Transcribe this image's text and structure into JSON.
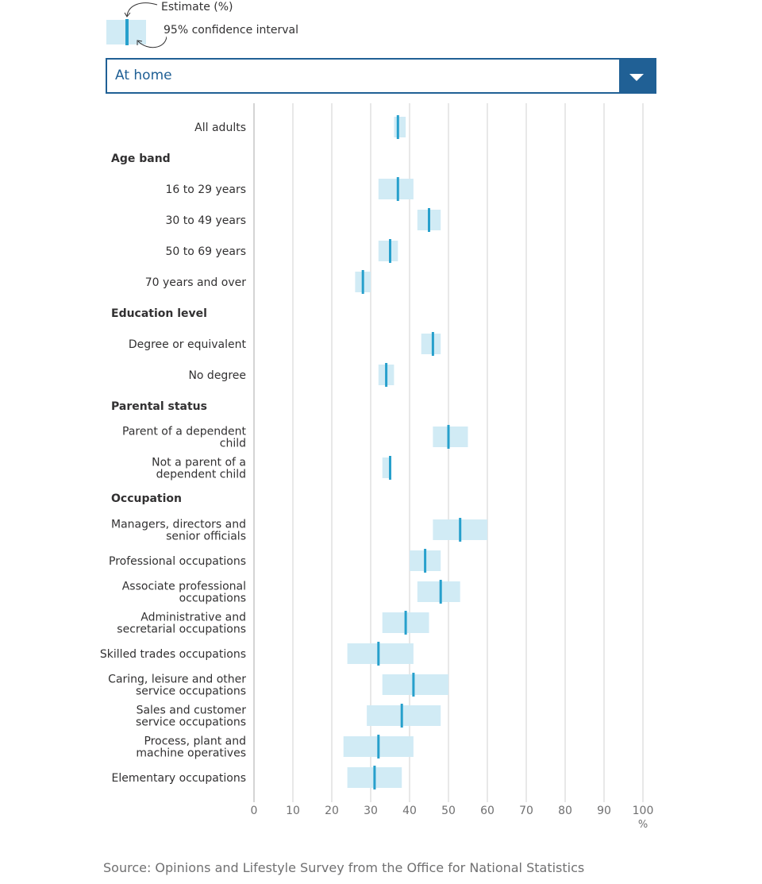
{
  "legend": {
    "estimate_label": "Estimate (%)",
    "ci_label": "95% confidence interval"
  },
  "dropdown": {
    "selected": "At home"
  },
  "colors": {
    "accent": "#206095",
    "estimate": "#27a0cc",
    "interval": "#d1ebf5",
    "grid": "#d0d0d0",
    "axis": "#a8a8a8"
  },
  "chart_data": {
    "type": "range-dot",
    "xlim": [
      0,
      100
    ],
    "x_ticks": [
      0,
      10,
      20,
      30,
      40,
      50,
      60,
      70,
      80,
      90,
      100
    ],
    "x_unit": "%",
    "grid": true,
    "rows": [
      {
        "kind": "item",
        "label": [
          "All adults"
        ],
        "estimate": 37,
        "lower": 36,
        "upper": 39
      },
      {
        "kind": "header",
        "label": [
          "Age band"
        ]
      },
      {
        "kind": "item",
        "label": [
          "16 to 29 years"
        ],
        "estimate": 37,
        "lower": 32,
        "upper": 41
      },
      {
        "kind": "item",
        "label": [
          "30 to 49 years"
        ],
        "estimate": 45,
        "lower": 42,
        "upper": 48
      },
      {
        "kind": "item",
        "label": [
          "50 to 69 years"
        ],
        "estimate": 35,
        "lower": 32,
        "upper": 37
      },
      {
        "kind": "item",
        "label": [
          "70 years and over"
        ],
        "estimate": 28,
        "lower": 26,
        "upper": 30
      },
      {
        "kind": "header",
        "label": [
          "Education level"
        ]
      },
      {
        "kind": "item",
        "label": [
          "Degree or equivalent"
        ],
        "estimate": 46,
        "lower": 43,
        "upper": 48
      },
      {
        "kind": "item",
        "label": [
          "No degree"
        ],
        "estimate": 34,
        "lower": 32,
        "upper": 36
      },
      {
        "kind": "header",
        "label": [
          "Parental status"
        ]
      },
      {
        "kind": "item",
        "label": [
          "Parent of a dependent",
          "child"
        ],
        "estimate": 50,
        "lower": 46,
        "upper": 55
      },
      {
        "kind": "item",
        "label": [
          "Not a parent of a",
          "dependent child"
        ],
        "estimate": 35,
        "lower": 33,
        "upper": 35
      },
      {
        "kind": "header",
        "label": [
          "Occupation"
        ]
      },
      {
        "kind": "item",
        "label": [
          "Managers, directors and",
          "senior officials"
        ],
        "estimate": 53,
        "lower": 46,
        "upper": 60
      },
      {
        "kind": "item",
        "label": [
          "Professional occupations"
        ],
        "estimate": 44,
        "lower": 40,
        "upper": 48
      },
      {
        "kind": "item",
        "label": [
          "Associate professional",
          "occupations"
        ],
        "estimate": 48,
        "lower": 42,
        "upper": 53
      },
      {
        "kind": "item",
        "label": [
          "Administrative and",
          "secretarial occupations"
        ],
        "estimate": 39,
        "lower": 33,
        "upper": 45
      },
      {
        "kind": "item",
        "label": [
          "Skilled trades occupations"
        ],
        "estimate": 32,
        "lower": 24,
        "upper": 41
      },
      {
        "kind": "item",
        "label": [
          "Caring, leisure and other",
          "service occupations"
        ],
        "estimate": 41,
        "lower": 33,
        "upper": 50
      },
      {
        "kind": "item",
        "label": [
          "Sales and customer",
          "service occupations"
        ],
        "estimate": 38,
        "lower": 29,
        "upper": 48
      },
      {
        "kind": "item",
        "label": [
          "Process, plant and",
          "machine operatives"
        ],
        "estimate": 32,
        "lower": 23,
        "upper": 41
      },
      {
        "kind": "item",
        "label": [
          "Elementary occupations"
        ],
        "estimate": 31,
        "lower": 24,
        "upper": 38
      }
    ]
  },
  "source": "Source: Opinions and Lifestyle Survey from the Office for National Statistics"
}
